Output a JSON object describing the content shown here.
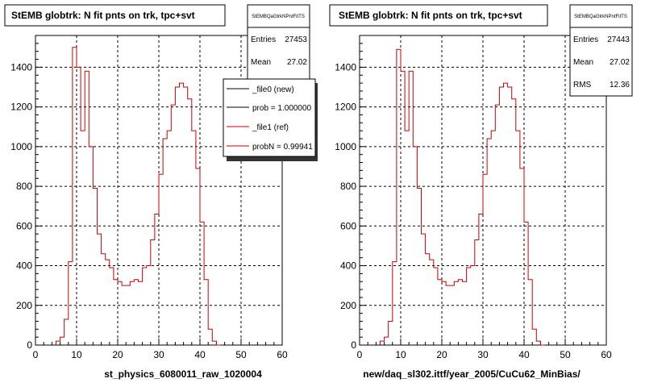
{
  "footer_text": "",
  "chart_data": [
    {
      "type": "histogram",
      "title": "StEMB globtrk: N fit pnts on trk, tpc+svt",
      "xlabel": "st_physics_6080011_raw_1020004",
      "ylabel": "",
      "xlim": [
        0,
        60
      ],
      "ylim": [
        0,
        1560
      ],
      "x_ticks": [
        0,
        10,
        20,
        30,
        40,
        50,
        60
      ],
      "y_ticks": [
        0,
        200,
        400,
        600,
        800,
        1000,
        1200,
        1400
      ],
      "grid": true,
      "stats": {
        "name": "StEMBQaGtrkNPntFitTS",
        "rows": [
          {
            "label": "Entries",
            "value": "27453"
          },
          {
            "label": "Mean",
            "value": "27.02"
          }
        ]
      },
      "legend": {
        "placement": "top-right",
        "entries": [
          {
            "label": "_file0 (new)",
            "color": "#000000"
          },
          {
            "label": "prob = 1.000000",
            "color": "#000000"
          },
          {
            "label": "_file1 (ref)",
            "color": "#cc0000"
          },
          {
            "label": "probN = 0.99941",
            "color": "#cc0000"
          }
        ]
      },
      "series": [
        {
          "name": "_file1 (ref)",
          "color": "#cc0000",
          "bin_width": 1,
          "bin_start": 5,
          "values": [
            20,
            40,
            130,
            420,
            1500,
            1400,
            1080,
            1380,
            1000,
            790,
            560,
            460,
            430,
            390,
            330,
            320,
            300,
            300,
            320,
            330,
            320,
            390,
            400,
            530,
            660,
            860,
            1040,
            1080,
            1210,
            1300,
            1320,
            1300,
            1240,
            1080,
            890,
            620,
            330,
            80,
            20,
            0
          ]
        }
      ]
    },
    {
      "type": "histogram",
      "title": "StEMB globtrk: N fit pnts on trk, tpc+svt",
      "xlabel": "new/daq_sl302.ittf/year_2005/CuCu62_MinBias/",
      "ylabel": "",
      "xlim": [
        0,
        60
      ],
      "ylim": [
        0,
        1560
      ],
      "x_ticks": [
        0,
        10,
        20,
        30,
        40,
        50,
        60
      ],
      "y_ticks": [
        0,
        200,
        400,
        600,
        800,
        1000,
        1200,
        1400
      ],
      "grid": true,
      "stats": {
        "name": "StEMBQaGtrkNPntFitTS",
        "rows": [
          {
            "label": "Entries",
            "value": "27443"
          },
          {
            "label": "Mean",
            "value": "27.02"
          },
          {
            "label": "RMS",
            "value": "12.36"
          }
        ]
      },
      "series": [
        {
          "name": "",
          "color": "#cc0000",
          "bin_width": 1,
          "bin_start": 5,
          "values": [
            20,
            40,
            120,
            420,
            1490,
            1380,
            1080,
            1380,
            1000,
            790,
            560,
            460,
            430,
            390,
            330,
            320,
            300,
            300,
            320,
            330,
            320,
            390,
            400,
            530,
            660,
            860,
            1040,
            1080,
            1210,
            1300,
            1320,
            1300,
            1240,
            1080,
            890,
            620,
            330,
            80,
            20,
            0
          ]
        }
      ]
    }
  ]
}
